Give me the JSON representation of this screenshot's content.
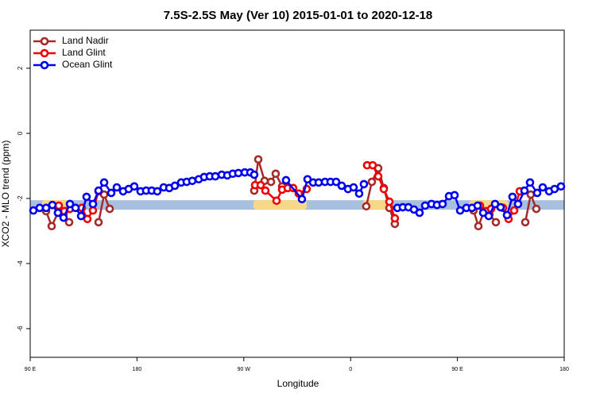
{
  "chart_data": {
    "type": "line",
    "title": "7.5S-2.5S May (Ver 10)   2015-01-01 to 2020-12-18",
    "x_label": "Longitude",
    "y_label": "XCO2 - MLO trend (ppm)",
    "xlim": [
      90,
      540
    ],
    "xticks": [
      {
        "value": 90,
        "label": "90 E"
      },
      {
        "value": 180,
        "label": "180"
      },
      {
        "value": 270,
        "label": "90 W"
      },
      {
        "value": 360,
        "label": "0"
      },
      {
        "value": 450,
        "label": "90 E"
      },
      {
        "value": 540,
        "label": "180"
      }
    ],
    "ylim": [
      -6.88,
      3.17
    ],
    "yticks": [
      2,
      0,
      -2,
      -4,
      -6
    ],
    "legend": "top-left",
    "band_y": -2.2,
    "band_color": "#a8c0e0",
    "land_color": "#f8d888",
    "land_ranges": [
      [
        100,
        125
      ],
      [
        278,
        323
      ],
      [
        370,
        395
      ],
      [
        460,
        493
      ]
    ],
    "series": [
      {
        "name": "Land Nadir",
        "color": "#a52a2a",
        "x": [
          103.4,
          108.1,
          113.4,
          118.1,
          122.8,
          null,
          147.6,
          152.3,
          157.0,
          null,
          278.8,
          282.2,
          287.5,
          292.9,
          296.9,
          302.3,
          null,
          373.2,
          377.9,
          383.3,
          388.0,
          392.7,
          397.3,
          null,
          463.6,
          467.7,
          472.3,
          477.0,
          482.4,
          null,
          507.2,
          511.8,
          516.5
        ],
        "values": [
          -2.39,
          -2.85,
          -2.44,
          -2.49,
          -2.73,
          null,
          -2.73,
          -1.88,
          -2.32,
          null,
          -1.76,
          -0.8,
          -1.46,
          -1.49,
          -1.24,
          -1.63,
          null,
          -2.24,
          -1.49,
          -1.07,
          -1.68,
          -2.29,
          -2.78,
          null,
          -2.37,
          -2.85,
          -2.41,
          -2.49,
          -2.73,
          null,
          -2.73,
          -1.88,
          -2.32
        ]
      },
      {
        "name": "Land Glint",
        "color": "#ee0000",
        "x": [
          114.1,
          118.8,
          123.5,
          null,
          133.5,
          138.2,
          142.9,
          147.6,
          null,
          279.5,
          284.2,
          288.2,
          297.6,
          302.3,
          307.0,
          311.6,
          316.3,
          323.0,
          null,
          373.9,
          378.6,
          383.3,
          388.0,
          392.7,
          397.3,
          null,
          469.0,
          473.7,
          478.4,
          null,
          488.4,
          493.1,
          497.8,
          502.5
        ],
        "values": [
          -2.22,
          -2.39,
          -2.32,
          null,
          -2.29,
          -2.63,
          -2.37,
          -1.78,
          null,
          -1.59,
          -1.59,
          -1.76,
          -2.07,
          -1.73,
          -1.68,
          -1.68,
          -1.85,
          -1.71,
          null,
          -0.98,
          -0.98,
          -1.32,
          -1.71,
          -2.1,
          -2.61,
          null,
          -2.22,
          -2.39,
          -2.32,
          null,
          -2.29,
          -2.63,
          -2.37,
          -1.78
        ]
      },
      {
        "name": "Ocean Glint",
        "color": "#0000ee",
        "x": [
          92.7,
          98.0,
          103.4,
          108.7,
          113.4,
          118.1,
          123.5,
          128.2,
          132.9,
          137.5,
          142.9,
          147.6,
          152.3,
          158.3,
          163.0,
          168.3,
          173.0,
          177.7,
          183.0,
          187.7,
          192.4,
          197.1,
          202.5,
          207.2,
          211.9,
          217.2,
          221.9,
          226.6,
          232.0,
          236.6,
          241.3,
          246.0,
          251.4,
          256.1,
          260.7,
          265.4,
          270.8,
          275.5,
          278.8,
          null,
          305.6,
          319.0,
          323.7,
          328.4,
          333.1,
          338.4,
          343.1,
          347.8,
          352.5,
          357.8,
          362.5,
          367.2,
          371.2,
          null,
          399.4,
          404.0,
          408.7,
          413.4,
          418.1,
          422.8,
          428.2,
          432.8,
          437.5,
          442.9,
          447.6,
          452.3,
          457.6,
          462.3,
          467.0,
          471.7,
          476.4,
          481.7,
          486.4,
          491.8,
          496.4,
          501.1,
          506.5,
          511.2,
          517.2,
          521.9,
          527.3,
          531.9,
          537.3
        ],
        "values": [
          -2.37,
          -2.29,
          -2.29,
          -2.2,
          -2.44,
          -2.59,
          -2.17,
          -2.29,
          -2.54,
          -1.95,
          -2.17,
          -1.76,
          -1.51,
          -1.83,
          -1.66,
          -1.78,
          -1.71,
          -1.63,
          -1.78,
          -1.76,
          -1.76,
          -1.78,
          -1.66,
          -1.68,
          -1.61,
          -1.51,
          -1.49,
          -1.46,
          -1.41,
          -1.34,
          -1.32,
          -1.32,
          -1.27,
          -1.29,
          -1.24,
          -1.22,
          -1.2,
          -1.2,
          -1.27,
          null,
          -1.44,
          -2.02,
          -1.41,
          -1.51,
          -1.51,
          -1.49,
          -1.49,
          -1.49,
          -1.61,
          -1.71,
          -1.66,
          -1.85,
          -1.56,
          null,
          -2.29,
          -2.27,
          -2.27,
          -2.34,
          -2.44,
          -2.22,
          -2.17,
          -2.2,
          -2.17,
          -1.93,
          -1.9,
          -2.37,
          -2.29,
          -2.29,
          -2.22,
          -2.44,
          -2.54,
          -2.17,
          -2.27,
          -2.51,
          -1.95,
          -2.17,
          -1.76,
          -1.51,
          -1.83,
          -1.66,
          -1.78,
          -1.71,
          -1.63
        ]
      }
    ]
  }
}
